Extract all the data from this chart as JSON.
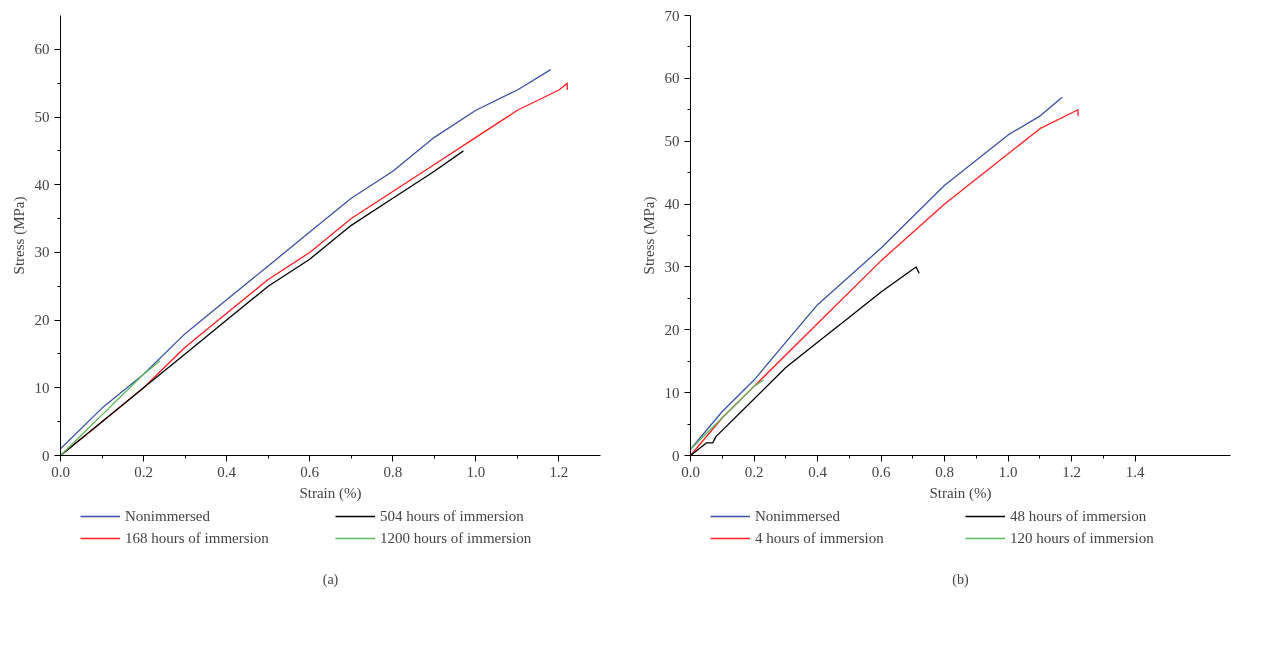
{
  "chart_data": [
    {
      "type": "line",
      "xlabel": "Strain (%)",
      "ylabel": "Stress (MPa)",
      "xlim": [
        0,
        1.3
      ],
      "ylim": [
        0,
        65
      ],
      "xticks": [
        {
          "value": 0,
          "label": "0.0"
        },
        {
          "value": 0.2,
          "label": "0.2"
        },
        {
          "value": 0.4,
          "label": "0.4"
        },
        {
          "value": 0.6,
          "label": "0.6"
        },
        {
          "value": 0.8,
          "label": "0.8"
        },
        {
          "value": 1.0,
          "label": "1.0"
        },
        {
          "value": 1.2,
          "label": "1.2"
        }
      ],
      "yticks": [
        0,
        10,
        20,
        30,
        40,
        50,
        60
      ],
      "grid": false,
      "legend": "bottom",
      "annotations": [
        "(a)"
      ],
      "series": [
        {
          "name": "Nonimmersed",
          "color": "#3a53a4",
          "x": [
            0,
            0.1,
            0.2,
            0.3,
            0.4,
            0.5,
            0.6,
            0.7,
            0.8,
            0.9,
            1.0,
            1.1,
            1.18
          ],
          "values": [
            1,
            7,
            12,
            18,
            23,
            28,
            33,
            38,
            42,
            47,
            51,
            54,
            57
          ]
        },
        {
          "name": "168 hours of immersion",
          "color": "#ff1f1f",
          "x": [
            0,
            0.1,
            0.2,
            0.3,
            0.4,
            0.5,
            0.6,
            0.7,
            0.8,
            0.9,
            1.0,
            1.1,
            1.2,
            1.22,
            1.22
          ],
          "values": [
            0,
            5,
            10,
            16,
            21,
            26,
            30,
            35,
            39,
            43,
            47,
            51,
            54,
            55,
            54
          ]
        },
        {
          "name": "504 hours of immersion",
          "color": "#000000",
          "x": [
            0,
            0.1,
            0.2,
            0.3,
            0.4,
            0.5,
            0.6,
            0.7,
            0.8,
            0.9,
            0.97
          ],
          "values": [
            0,
            5,
            10,
            15,
            20,
            25,
            29,
            34,
            38,
            42,
            45
          ]
        },
        {
          "name": "1200 hours of immersion",
          "color": "#5cb85c",
          "x": [
            0,
            0.05,
            0.1,
            0.15,
            0.2,
            0.24
          ],
          "values": [
            0,
            3,
            6,
            9,
            12,
            14
          ]
        }
      ]
    },
    {
      "type": "line",
      "xlabel": "Strain (%)",
      "ylabel": "Stress (MPa)",
      "xlim": [
        0,
        1.7
      ],
      "ylim": [
        0,
        70
      ],
      "xticks": [
        {
          "value": 0,
          "label": "0.0"
        },
        {
          "value": 0.2,
          "label": "0.2"
        },
        {
          "value": 0.4,
          "label": "0.4"
        },
        {
          "value": 0.6,
          "label": "0.6"
        },
        {
          "value": 0.8,
          "label": "0.8"
        },
        {
          "value": 1.0,
          "label": "1.0"
        },
        {
          "value": 1.2,
          "label": "1.2"
        },
        {
          "value": 1.4,
          "label": "1.4"
        }
      ],
      "yticks": [
        0,
        10,
        20,
        30,
        40,
        50,
        60,
        70
      ],
      "grid": false,
      "legend": "bottom",
      "annotations": [
        "(b)"
      ],
      "series": [
        {
          "name": "Nonimmersed",
          "color": "#3a53a4",
          "x": [
            0,
            0.1,
            0.2,
            0.4,
            0.6,
            0.8,
            1.0,
            1.1,
            1.17
          ],
          "values": [
            1,
            7,
            12,
            24,
            33,
            43,
            51,
            54,
            57
          ]
        },
        {
          "name": "4 hours of immersion",
          "color": "#ff1f1f",
          "x": [
            0,
            0.1,
            0.2,
            0.4,
            0.6,
            0.8,
            1.0,
            1.1,
            1.22,
            1.22
          ],
          "values": [
            0,
            6,
            11,
            21,
            31,
            40,
            48,
            52,
            55,
            54
          ]
        },
        {
          "name": "48 hours of immersion",
          "color": "#000000",
          "x": [
            0,
            0.05,
            0.07,
            0.08,
            0.2,
            0.3,
            0.4,
            0.5,
            0.6,
            0.71,
            0.72
          ],
          "values": [
            0,
            2,
            2,
            3,
            9,
            14,
            18,
            22,
            26,
            30,
            29
          ]
        },
        {
          "name": "120 hours of immersion",
          "color": "#5cb85c",
          "x": [
            0,
            0.1,
            0.2,
            0.23
          ],
          "values": [
            1,
            6,
            11,
            12
          ]
        }
      ]
    }
  ]
}
